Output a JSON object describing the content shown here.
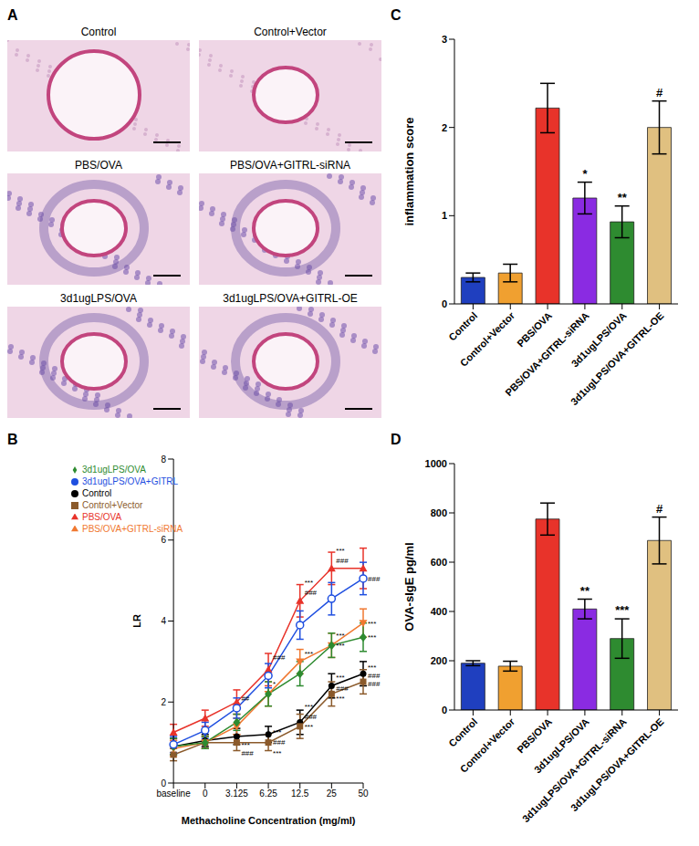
{
  "images": {
    "panel_label": "A",
    "labels": [
      "Control",
      "Control+Vector",
      "PBS/OVA",
      "PBS/OVA+GITRL-siRNA",
      "3d1ugLPS/OVA",
      "3d1ugLPS/OVA+GITRL-OE"
    ]
  },
  "chart_data": [
    {
      "panel_label": "B",
      "type": "line",
      "x_label": "Methacholine Concentration (mg/ml)",
      "y_label": "LR",
      "categories": [
        "baseline",
        "0",
        "3.125",
        "6.25",
        "12.5",
        "25",
        "50"
      ],
      "ylim": [
        0,
        8
      ],
      "yticks": [
        0,
        2,
        4,
        6,
        8
      ],
      "legend": "upper left",
      "series": [
        {
          "name": "Control",
          "color": "#000000",
          "marker": "circle",
          "values": [
            0.9,
            1.05,
            1.15,
            1.2,
            1.5,
            2.4,
            2.7
          ],
          "errors": [
            0.2,
            0.15,
            0.2,
            0.2,
            0.3,
            0.3,
            0.3
          ]
        },
        {
          "name": "Control+Vector",
          "color": "#8b5a2b",
          "marker": "square",
          "values": [
            0.7,
            1.0,
            1.0,
            1.0,
            1.4,
            2.2,
            2.5
          ],
          "errors": [
            0.15,
            0.15,
            0.2,
            0.2,
            0.3,
            0.3,
            0.3
          ]
        },
        {
          "name": "PBS/OVA",
          "color": "#e8332a",
          "marker": "triangle",
          "values": [
            1.25,
            1.6,
            2.0,
            2.8,
            4.5,
            5.3,
            5.3
          ],
          "errors": [
            0.2,
            0.2,
            0.3,
            0.4,
            0.4,
            0.4,
            0.5
          ]
        },
        {
          "name": "PBS/OVA+GITRL-siRNA",
          "color": "#f07830",
          "marker": "triangle-down",
          "values": [
            0.85,
            1.0,
            1.4,
            2.2,
            3.0,
            3.4,
            3.95
          ],
          "errors": [
            0.2,
            0.15,
            0.2,
            0.3,
            0.3,
            0.3,
            0.35
          ]
        },
        {
          "name": "3d1ugLPS/OVA",
          "color": "#2e8b30",
          "marker": "diamond",
          "values": [
            0.9,
            1.0,
            1.5,
            2.2,
            2.7,
            3.4,
            3.6
          ],
          "errors": [
            0.2,
            0.15,
            0.2,
            0.3,
            0.3,
            0.3,
            0.35
          ]
        },
        {
          "name": "3d1ugLPS/OVA+GITRL",
          "color": "#1f4fe0",
          "marker": "open-circle",
          "values": [
            0.95,
            1.3,
            1.85,
            2.65,
            3.9,
            4.55,
            5.05
          ],
          "errors": [
            0.2,
            0.2,
            0.25,
            0.3,
            0.35,
            0.4,
            0.4
          ]
        }
      ],
      "annotations": [
        {
          "x": "3.125",
          "y": 2.1,
          "text": "##"
        },
        {
          "x": "3.125",
          "y": 0.95,
          "text": "***"
        },
        {
          "x": "3.125",
          "y": 0.75,
          "text": "###"
        },
        {
          "x": "6.25",
          "y": 3.1,
          "text": "###"
        },
        {
          "x": "6.25",
          "y": 2.45,
          "text": "*"
        },
        {
          "x": "6.25",
          "y": 1.25,
          "text": "***"
        },
        {
          "x": "6.25",
          "y": 1.0,
          "text": "###"
        },
        {
          "x": "6.25",
          "y": 0.75,
          "text": "***"
        },
        {
          "x": "12.5",
          "y": 4.95,
          "text": "***"
        },
        {
          "x": "12.5",
          "y": 4.7,
          "text": "###"
        },
        {
          "x": "12.5",
          "y": 3.2,
          "text": "***"
        },
        {
          "x": "12.5",
          "y": 1.9,
          "text": "***"
        },
        {
          "x": "12.5",
          "y": 1.65,
          "text": "###"
        },
        {
          "x": "12.5",
          "y": 1.4,
          "text": "***"
        },
        {
          "x": "25",
          "y": 5.75,
          "text": "***"
        },
        {
          "x": "25",
          "y": 5.5,
          "text": "###"
        },
        {
          "x": "25",
          "y": 3.65,
          "text": "***"
        },
        {
          "x": "25",
          "y": 3.4,
          "text": "***"
        },
        {
          "x": "25",
          "y": 2.6,
          "text": "***"
        },
        {
          "x": "25",
          "y": 2.35,
          "text": "###"
        },
        {
          "x": "25",
          "y": 2.1,
          "text": "***"
        },
        {
          "x": "50",
          "y": 5.05,
          "text": "###"
        },
        {
          "x": "50",
          "y": 3.95,
          "text": "***"
        },
        {
          "x": "50",
          "y": 3.6,
          "text": "***"
        },
        {
          "x": "50",
          "y": 2.85,
          "text": "***"
        },
        {
          "x": "50",
          "y": 2.65,
          "text": "###"
        },
        {
          "x": "50",
          "y": 2.45,
          "text": "###"
        }
      ]
    },
    {
      "panel_label": "C",
      "type": "bar",
      "y_label": "inflammation score",
      "categories": [
        "Control",
        "Control+Vector",
        "PBS/OVA",
        "PBS/OVA+GITRL-siRNA",
        "3d1ugLPS/OVA",
        "3d1ugLPS/OVA+GITRL-OE"
      ],
      "values": [
        0.3,
        0.35,
        2.22,
        1.2,
        0.93,
        2.0
      ],
      "errors": [
        0.05,
        0.1,
        0.28,
        0.18,
        0.18,
        0.3
      ],
      "significance": [
        null,
        null,
        null,
        "*",
        "**",
        "#"
      ],
      "colors": [
        "#1f3fbf",
        "#f0a030",
        "#e8332a",
        "#8a2be2",
        "#2e8b30",
        "#e0c080"
      ],
      "ylim": [
        0,
        3
      ],
      "yticks": [
        0,
        1,
        2,
        3
      ]
    },
    {
      "panel_label": "D",
      "type": "bar",
      "y_label": "OVA-sIgE pg/ml",
      "categories": [
        "Control",
        "Control+Vector",
        "PBS/OVA",
        "3d1ugLPS/OVA",
        "3d1ugLPS/OVA+GITRL-siRNA",
        "3d1ugLPS/OVA+GITRL-OE"
      ],
      "values": [
        190,
        178,
        775,
        410,
        290,
        688
      ],
      "errors": [
        10,
        20,
        65,
        40,
        80,
        95
      ],
      "significance": [
        null,
        null,
        null,
        "**",
        "***",
        "#"
      ],
      "colors": [
        "#1f3fbf",
        "#f0a030",
        "#e8332a",
        "#8a2be2",
        "#2e8b30",
        "#e0c080"
      ],
      "ylim": [
        0,
        1000
      ],
      "yticks": [
        0,
        200,
        400,
        600,
        800,
        1000
      ]
    }
  ]
}
